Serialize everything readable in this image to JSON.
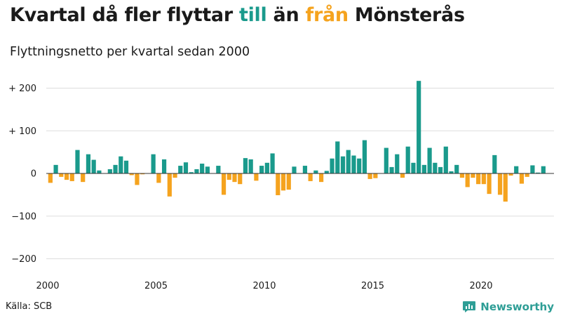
{
  "title": {
    "part1": "Kvartal då fler flyttar ",
    "till": "till",
    "mid": " än ",
    "fran": "från",
    "part2": " Mönsterås"
  },
  "subtitle": "Flyttningsnetto per kvartal sedan 2000",
  "source": "Källa: SCB",
  "brand": "Newsworthy",
  "colors": {
    "positive": "#1a9a8c",
    "negative": "#f5a31e",
    "grid": "#dddddd",
    "baseline": "#333333",
    "brand": "#2e9e96"
  },
  "chart_data": {
    "type": "bar",
    "title": "Kvartal då fler flyttar till än från Mönsterås",
    "subtitle": "Flyttningsnetto per kvartal sedan 2000",
    "x_start": "2000Q1",
    "xlabel": "",
    "ylabel": "",
    "ylim": [
      -220,
      220
    ],
    "y_ticks": [
      200,
      100,
      0,
      -100,
      -200
    ],
    "y_tick_labels": [
      "+ 200",
      "+ 100",
      "0",
      "−100",
      "−200"
    ],
    "x_tick_labels": [
      "2000",
      "2005",
      "2010",
      "2015",
      "2020"
    ],
    "grid": true,
    "values": [
      -22,
      20,
      -8,
      -15,
      -18,
      55,
      -20,
      45,
      32,
      7,
      0,
      10,
      20,
      40,
      30,
      -4,
      -27,
      -2,
      0,
      45,
      -22,
      33,
      -54,
      -10,
      18,
      26,
      3,
      10,
      23,
      16,
      0,
      18,
      -50,
      -15,
      -20,
      -25,
      36,
      33,
      -17,
      18,
      25,
      47,
      -51,
      -40,
      -38,
      16,
      0,
      18,
      -18,
      7,
      -20,
      6,
      35,
      75,
      40,
      55,
      42,
      35,
      78,
      -13,
      -11,
      0,
      60,
      15,
      45,
      -10,
      63,
      25,
      217,
      20,
      60,
      25,
      15,
      63,
      5,
      20,
      -10,
      -32,
      -10,
      -25,
      -25,
      -48,
      43,
      -50,
      -66,
      -5,
      17,
      -24,
      -8,
      19,
      2,
      17
    ]
  }
}
